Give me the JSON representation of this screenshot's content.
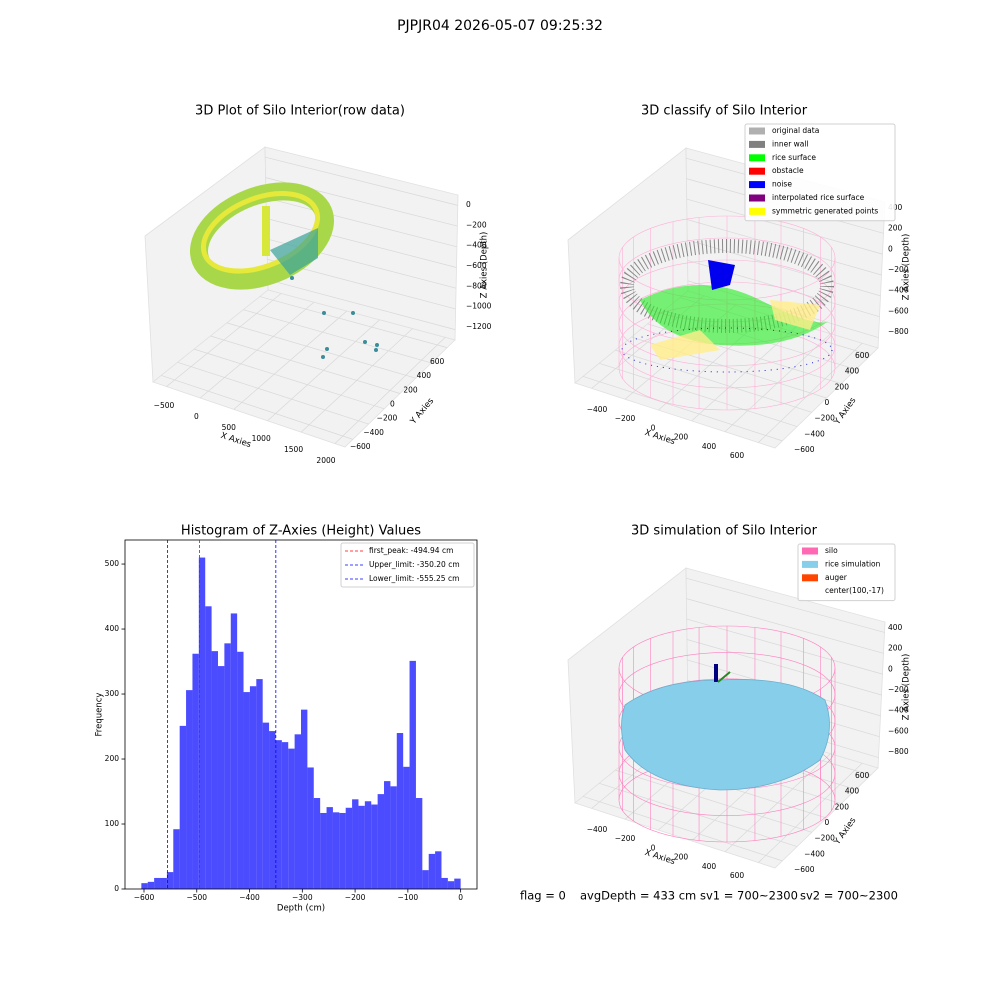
{
  "suptitle": "PJPJR04 2026-05-07 09:25:32",
  "status": [
    "flag = 0",
    "avgDepth = 433 cm",
    "sv1 = 700~2300",
    "sv2 = 700~2300"
  ],
  "chart_data": [
    {
      "type": "scatter3d",
      "title": "3D Plot of Silo Interior(row data)",
      "xlabel": "X Axies",
      "ylabel": "Y Axies",
      "zlabel": "Z Axies (Depth)",
      "xlim": [
        -700,
        2150
      ],
      "ylim": [
        -700,
        700
      ],
      "zlim": [
        -1300,
        100
      ],
      "xticks": [
        {
          "value": -500,
          "label": "−500"
        },
        0,
        500,
        1000,
        1500,
        2000
      ],
      "yticks": [
        {
          "value": -600,
          "label": "−600"
        },
        {
          "value": -400,
          "label": "−400"
        },
        {
          "value": -200,
          "label": "−200"
        },
        0,
        200,
        400,
        600
      ],
      "zticks": [
        0,
        {
          "value": -200,
          "label": "−200"
        },
        {
          "value": -400,
          "label": "−400"
        },
        {
          "value": -600,
          "label": "−600"
        },
        {
          "value": -800,
          "label": "−800"
        },
        {
          "value": -1000,
          "label": "−1000"
        },
        {
          "value": -1200,
          "label": "−1200"
        }
      ]
    },
    {
      "type": "scatter3d",
      "title": "3D classify of Silo Interior",
      "xlabel": "X Axies",
      "ylabel": "Y Axies",
      "zlabel": "Z Axies (Depth)",
      "xlim": [
        -500,
        700
      ],
      "ylim": [
        -700,
        700
      ],
      "zlim": [
        -900,
        500
      ],
      "xticks": [
        {
          "value": -400,
          "label": "−400"
        },
        {
          "value": -200,
          "label": "−200"
        },
        0,
        200,
        400,
        600
      ],
      "yticks": [
        {
          "value": -600,
          "label": "−600"
        },
        {
          "value": -400,
          "label": "−400"
        },
        {
          "value": -200,
          "label": "−200"
        },
        0,
        200,
        400,
        600
      ],
      "zticks": [
        400,
        200,
        0,
        {
          "value": -200,
          "label": "−200"
        },
        {
          "value": -400,
          "label": "−400"
        },
        {
          "value": -600,
          "label": "−600"
        },
        {
          "value": -800,
          "label": "−800"
        }
      ],
      "legend": [
        {
          "name": "original data",
          "color": "#b0b0b0"
        },
        {
          "name": "inner wall",
          "color": "#808080"
        },
        {
          "name": "rice surface",
          "color": "#00ff00"
        },
        {
          "name": "obstacle",
          "color": "#ff0000"
        },
        {
          "name": "noise",
          "color": "#0000ff"
        },
        {
          "name": "interpolated rice surface",
          "color": "#800080"
        },
        {
          "name": "symmetric generated points",
          "color": "#ffff00"
        }
      ]
    },
    {
      "type": "histogram",
      "title": "Histogram of Z-Axies (Height) Values",
      "xlabel": "Depth (cm)",
      "ylabel": "Frequency",
      "color": "#0000ff",
      "opacity": 0.7,
      "bins": [
        -605,
        -592.9,
        -580.8,
        -568.7,
        -556.6,
        -544.5,
        -532.4,
        -520.3,
        -508.2,
        -496.1,
        -484,
        -471.9,
        -459.8,
        -447.7,
        -435.6,
        -423.5,
        -411.4,
        -399.3,
        -387.2,
        -375.1,
        -363,
        -350.9,
        -338.8,
        -326.7,
        -314.6,
        -302.5,
        -290.4,
        -278.3,
        -266.2,
        -254.1,
        -242,
        -229.9,
        -217.8,
        -205.7,
        -193.6,
        -181.5,
        -169.4,
        -157.3,
        -145.2,
        -133.1,
        -121,
        -108.9,
        -96.8,
        -84.7,
        -72.6,
        -60.5,
        -48.4,
        -36.3,
        -24.2,
        -12.1,
        0
      ],
      "counts": [
        9,
        11,
        17,
        17,
        26,
        92,
        251,
        306,
        362,
        510,
        435,
        366,
        343,
        378,
        424,
        365,
        303,
        312,
        323,
        256,
        243,
        229,
        226,
        216,
        238,
        276,
        187,
        140,
        117,
        126,
        118,
        117,
        125,
        138,
        128,
        135,
        130,
        146,
        166,
        158,
        240,
        188,
        351,
        140,
        29,
        54,
        58,
        17,
        12,
        16
      ],
      "xlim": [
        -636,
        31
      ],
      "ylim": [
        0,
        537
      ],
      "xticks": [
        {
          "value": -600,
          "label": "−600"
        },
        {
          "value": -500,
          "label": "−500"
        },
        {
          "value": -400,
          "label": "−400"
        },
        {
          "value": -300,
          "label": "−300"
        },
        {
          "value": -200,
          "label": "−200"
        },
        {
          "value": -100,
          "label": "−100"
        },
        0
      ],
      "yticks": [
        0,
        100,
        200,
        300,
        400,
        500
      ],
      "vlines": [
        {
          "name": "first_peak: -494.94 cm",
          "value": -494.94,
          "color": "#ff0000"
        },
        {
          "name": "Upper_limit: -350.20 cm",
          "value": -350.2,
          "color": "#0000ff"
        },
        {
          "name": "Lower_limit: -555.25 cm",
          "value": -555.25,
          "color": "#0000ff"
        }
      ]
    },
    {
      "type": "scatter3d",
      "title": "3D simulation of Silo Interior",
      "xlabel": "X Axies",
      "ylabel": "Y Axies",
      "zlabel": "Z Axies (Depth)",
      "xlim": [
        -500,
        700
      ],
      "ylim": [
        -700,
        700
      ],
      "zlim": [
        -900,
        500
      ],
      "xticks": [
        {
          "value": -400,
          "label": "−400"
        },
        {
          "value": -200,
          "label": "−200"
        },
        0,
        200,
        400,
        600
      ],
      "yticks": [
        {
          "value": -600,
          "label": "−600"
        },
        {
          "value": -400,
          "label": "−400"
        },
        {
          "value": -200,
          "label": "−200"
        },
        0,
        200,
        400,
        600
      ],
      "zticks": [
        400,
        200,
        0,
        {
          "value": -200,
          "label": "−200"
        },
        {
          "value": -400,
          "label": "−400"
        },
        {
          "value": -600,
          "label": "−600"
        },
        {
          "value": -800,
          "label": "−800"
        }
      ],
      "legend": [
        {
          "name": "silo",
          "color": "#ff69b4"
        },
        {
          "name": "rice simulation",
          "color": "#87ceeb"
        },
        {
          "name": "auger",
          "color": "#ff4500"
        },
        {
          "name": "center(100,-17)",
          "color": "#ffffff"
        }
      ]
    }
  ]
}
